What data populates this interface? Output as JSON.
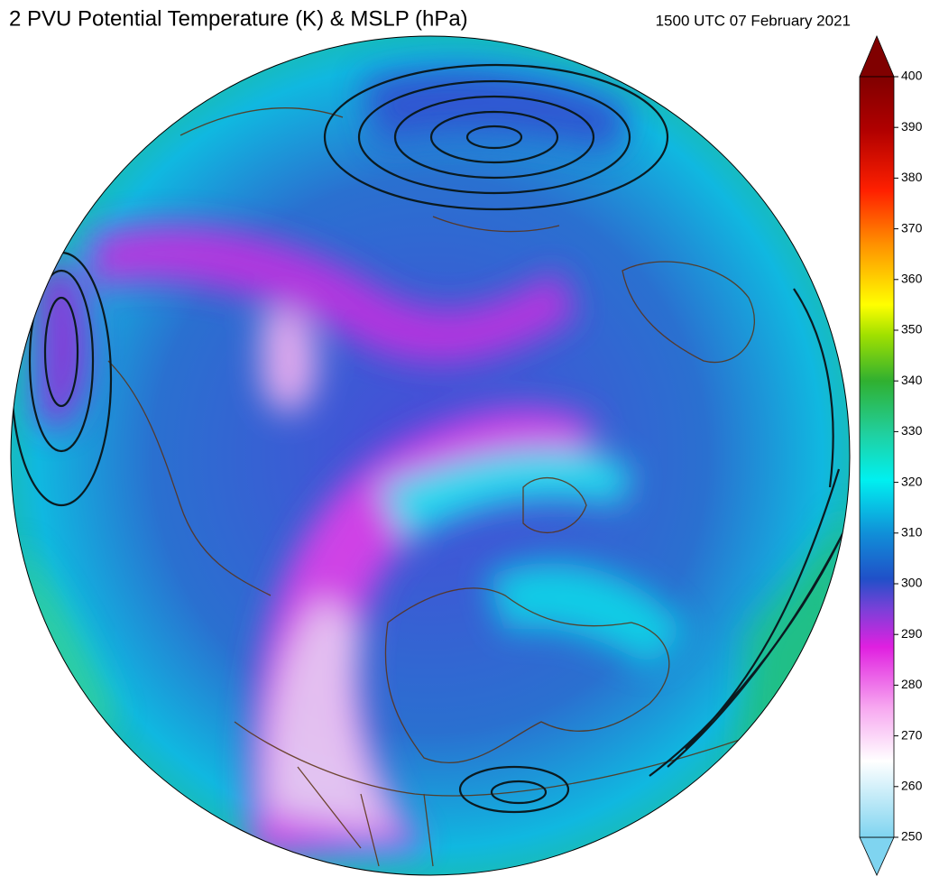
{
  "title": "2 PVU Potential Temperature (K) & MSLP (hPa)",
  "timestamp": "1500 UTC 07 February 2021",
  "colorbar": {
    "range": [
      250,
      400
    ],
    "ticks": [
      250,
      260,
      270,
      280,
      290,
      300,
      310,
      320,
      330,
      340,
      350,
      360,
      370,
      380,
      390,
      400
    ]
  }
}
